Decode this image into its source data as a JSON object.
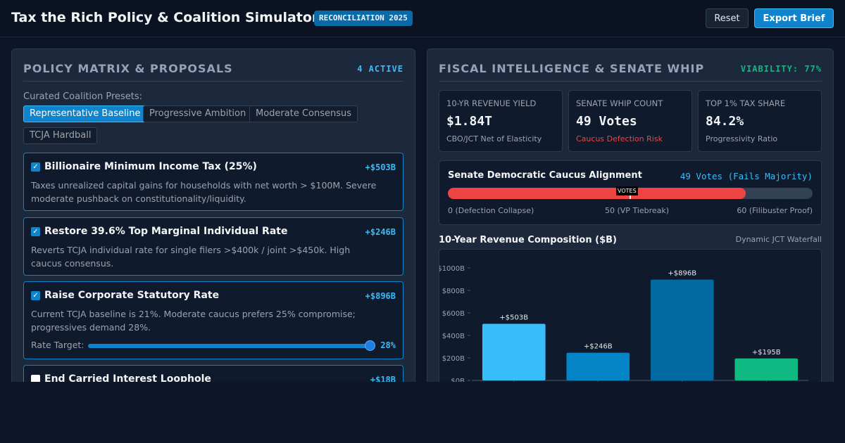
{
  "header": {
    "title": "Tax the Rich Policy & Coalition Simulator",
    "badge": "RECONCILIATION 2025",
    "reset_label": "Reset",
    "export_label": "Export Brief"
  },
  "policy_panel": {
    "title": "POLICY MATRIX & PROPOSALS",
    "active_count": "4 ACTIVE",
    "presets_label": "Curated Coalition Presets:",
    "presets": [
      {
        "label": "Representative Baseline",
        "active": true
      },
      {
        "label": "Progressive Ambition",
        "active": false
      },
      {
        "label": "Moderate Consensus",
        "active": false
      },
      {
        "label": "TCJA Hardball",
        "active": false
      }
    ],
    "policies": [
      {
        "title": "Billionaire Minimum Income Tax (25%)",
        "amount": "+$503B",
        "checked": true,
        "description": "Taxes unrealized capital gains for households with net worth > $100M. Severe moderate pushback on constitutionality/liquidity."
      },
      {
        "title": "Restore 39.6% Top Marginal Individual Rate",
        "amount": "+$246B",
        "checked": true,
        "description": "Reverts TCJA individual rate for single filers >$400k / joint >$450k. High caucus consensus."
      },
      {
        "title": "Raise Corporate Statutory Rate",
        "amount": "+$896B",
        "checked": true,
        "description": "Current TCJA baseline is 21%. Moderate caucus prefers 25% compromise; progressives demand 28%.",
        "rate_label": "Rate Target:",
        "rate_value": "28%",
        "rate_fraction": 1.0
      },
      {
        "title": "End Carried Interest Loophole",
        "amount": "+$18B",
        "checked": false,
        "description": ""
      }
    ]
  },
  "fiscal_panel": {
    "title": "FISCAL INTELLIGENCE & SENATE WHIP",
    "viability": "VIABILITY: 77%",
    "stats": [
      {
        "label": "10-YR REVENUE YIELD",
        "value": "$1.84T",
        "sub": "CBO/JCT Net of Elasticity",
        "sub_color": "normal"
      },
      {
        "label": "SENATE WHIP COUNT",
        "value": "49 Votes",
        "sub": "Caucus Defection Risk",
        "sub_color": "red"
      },
      {
        "label": "TOP 1% TAX SHARE",
        "value": "84.2%",
        "sub": "Progressivity Ratio",
        "sub_color": "normal"
      }
    ],
    "caucus": {
      "title": "Senate Democratic Caucus Alignment",
      "count": "49 Votes (Fails Majority)",
      "votes": 49,
      "max_votes": 60,
      "marker_label": "VOTES",
      "ticks": [
        "0 (Defection Collapse)",
        "50 (VP Tiebreak)",
        "60 (Filibuster Proof)"
      ]
    },
    "chart_title": "10-Year Revenue Composition ($B)",
    "chart_subtitle": "Dynamic JCT Waterfall"
  },
  "chart_data": {
    "type": "bar",
    "title": "10-Year Revenue Composition ($B)",
    "subtitle": "Dynamic JCT Waterfall",
    "values": [
      503,
      246,
      896,
      195
    ],
    "value_labels": [
      "+$503B",
      "+$246B",
      "+$896B",
      "+$195B"
    ],
    "colors": [
      "#38bdf8",
      "#0284c7",
      "#0369a1",
      "#10b981"
    ],
    "y_ticks": [
      "$0B",
      "$200B",
      "$400B",
      "$600B",
      "$800B",
      "$1000B"
    ],
    "ylim": [
      0,
      1000
    ],
    "grid": false
  }
}
